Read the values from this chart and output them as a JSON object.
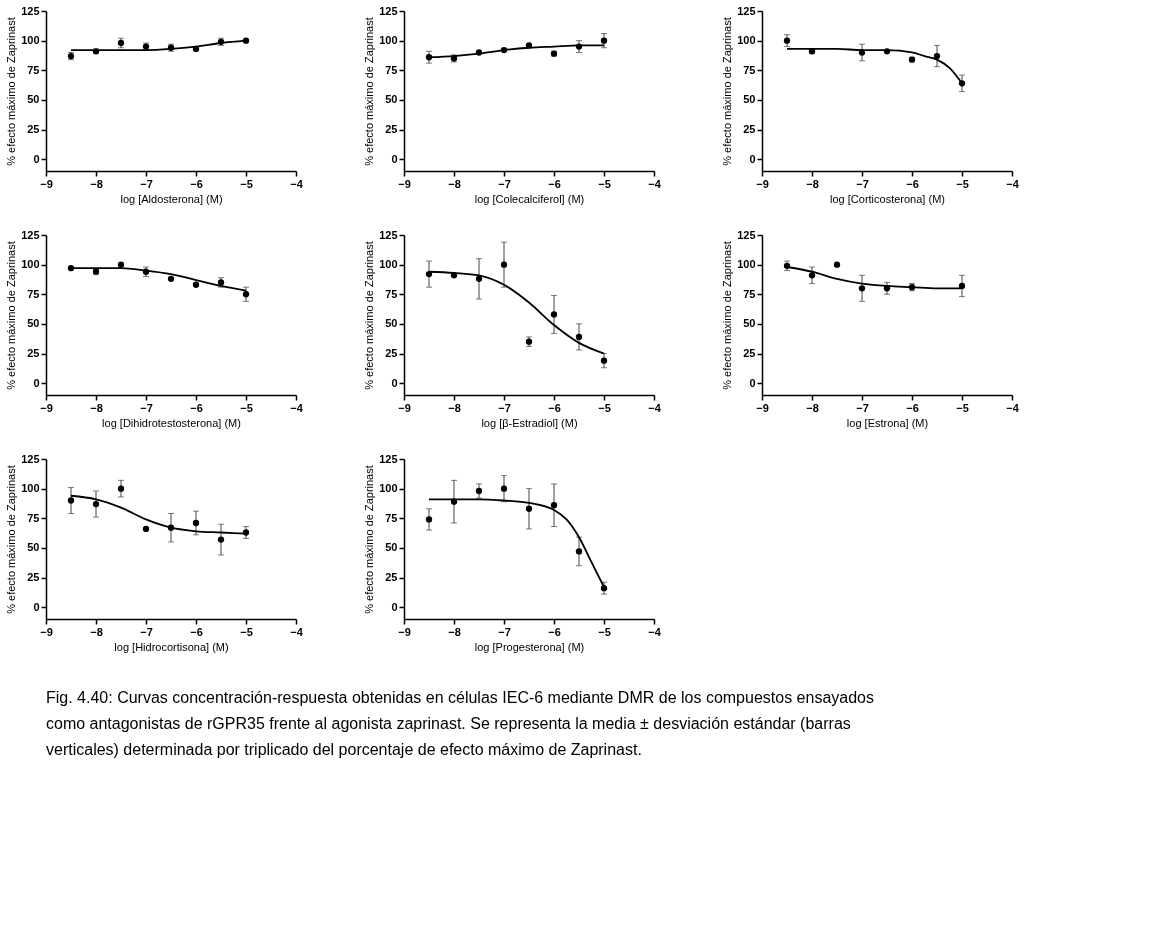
{
  "chart_data": [
    {
      "type": "scatter",
      "xlabel": "log [Aldosterona] (M)",
      "ylabel": "% efecto máximo de Zaprinast",
      "xlim": [
        -9,
        -4
      ],
      "xticks": [
        -9,
        -8,
        -7,
        -6,
        -5,
        -4
      ],
      "ylim": [
        -10,
        125
      ],
      "yticks": [
        0,
        25,
        50,
        75,
        100,
        125
      ],
      "grid": false,
      "series": [
        {
          "color": "#000000",
          "marker": "circle",
          "x": [
            -8.5,
            -8,
            -7.5,
            -7,
            -6.5,
            -6,
            -5.5,
            -5
          ],
          "values": [
            87,
            91,
            98,
            95,
            94,
            93,
            99,
            100
          ],
          "errors": [
            3,
            2,
            4,
            3,
            3,
            1,
            3,
            1
          ]
        },
        {
          "type": "line",
          "color": "#000000",
          "marker": "none",
          "x": [
            -8.5,
            -8,
            -7.5,
            -7,
            -6.5,
            -6,
            -5.5,
            -5
          ],
          "values": [
            92,
            92,
            92,
            92,
            93,
            95,
            98,
            100
          ]
        }
      ]
    },
    {
      "type": "scatter",
      "xlabel": "log [Colecalciferol] (M)",
      "ylabel": "% efecto máximo de Zaprinast",
      "xlim": [
        -9,
        -4
      ],
      "xticks": [
        -9,
        -8,
        -7,
        -6,
        -5,
        -4
      ],
      "ylim": [
        -10,
        125
      ],
      "yticks": [
        0,
        25,
        50,
        75,
        100,
        125
      ],
      "grid": false,
      "series": [
        {
          "color": "#000000",
          "marker": "circle",
          "x": [
            -8.5,
            -8,
            -7.5,
            -7,
            -6.5,
            -6,
            -5.5,
            -5
          ],
          "values": [
            86,
            85,
            90,
            92,
            96,
            89,
            95,
            100
          ],
          "errors": [
            5,
            3,
            1,
            1,
            1,
            2,
            5,
            6
          ]
        },
        {
          "type": "line",
          "color": "#000000",
          "marker": "none",
          "x": [
            -8.5,
            -8,
            -7.5,
            -7,
            -6.5,
            -6,
            -5.5,
            -5
          ],
          "values": [
            86,
            87,
            89,
            92,
            94,
            95,
            96,
            96
          ]
        }
      ]
    },
    {
      "type": "scatter",
      "xlabel": "log [Corticosterona] (M)",
      "ylabel": "% efecto máximo de Zaprinast",
      "xlim": [
        -9,
        -4
      ],
      "xticks": [
        -9,
        -8,
        -7,
        -6,
        -5,
        -4
      ],
      "ylim": [
        -10,
        125
      ],
      "yticks": [
        0,
        25,
        50,
        75,
        100,
        125
      ],
      "grid": false,
      "series": [
        {
          "color": "#000000",
          "marker": "circle",
          "x": [
            -8.5,
            -8,
            -7,
            -6.5,
            -6,
            -5.5,
            -5
          ],
          "values": [
            100,
            91,
            90,
            91,
            84,
            87,
            64
          ],
          "errors": [
            5,
            2,
            7,
            1,
            2,
            9,
            7
          ]
        },
        {
          "type": "line",
          "color": "#000000",
          "marker": "none",
          "x": [
            -8.5,
            -8,
            -7.5,
            -7,
            -6.5,
            -6,
            -5.75,
            -5.5,
            -5.25,
            -5
          ],
          "values": [
            93,
            93,
            93,
            92,
            92,
            90,
            87,
            84,
            77,
            64
          ]
        }
      ]
    },
    {
      "type": "scatter",
      "xlabel": "log [Dihidrotestosterona] (M)",
      "ylabel": "% efecto máximo de Zaprinast",
      "xlim": [
        -9,
        -4
      ],
      "xticks": [
        -9,
        -8,
        -7,
        -6,
        -5,
        -4
      ],
      "ylim": [
        -10,
        125
      ],
      "yticks": [
        0,
        25,
        50,
        75,
        100,
        125
      ],
      "grid": false,
      "series": [
        {
          "color": "#000000",
          "marker": "circle",
          "x": [
            -8.5,
            -8,
            -7.5,
            -7,
            -6.5,
            -6,
            -5.5,
            -5
          ],
          "values": [
            97,
            94,
            100,
            94,
            88,
            83,
            85,
            75
          ],
          "errors": [
            null,
            2,
            null,
            4,
            1,
            1,
            4,
            6
          ]
        },
        {
          "type": "line",
          "color": "#000000",
          "marker": "none",
          "x": [
            -8.5,
            -8,
            -7.5,
            -7,
            -6.5,
            -6,
            -5.5,
            -5
          ],
          "values": [
            97,
            97,
            97,
            95,
            92,
            87,
            82,
            78
          ]
        }
      ]
    },
    {
      "type": "scatter",
      "xlabel": "log [β-Estradiol] (M)",
      "ylabel": "% efecto máximo de Zaprinast",
      "xlim": [
        -9,
        -4
      ],
      "xticks": [
        -9,
        -8,
        -7,
        -6,
        -5,
        -4
      ],
      "ylim": [
        -10,
        125
      ],
      "yticks": [
        0,
        25,
        50,
        75,
        100,
        125
      ],
      "grid": false,
      "series": [
        {
          "color": "#000000",
          "marker": "circle",
          "x": [
            -8.5,
            -8,
            -7.5,
            -7,
            -6.5,
            -6,
            -5.5,
            -5
          ],
          "values": [
            92,
            91,
            88,
            100,
            35,
            58,
            39,
            19
          ],
          "errors": [
            11,
            1,
            17,
            19,
            4,
            16,
            11,
            6
          ]
        },
        {
          "type": "line",
          "color": "#000000",
          "marker": "none",
          "x": [
            -8.5,
            -8,
            -7.5,
            -7,
            -6.5,
            -6,
            -5.5,
            -5
          ],
          "values": [
            94,
            93,
            91,
            83,
            68,
            49,
            34,
            25
          ]
        }
      ]
    },
    {
      "type": "scatter",
      "xlabel": "log [Estrona] (M)",
      "ylabel": "% efecto máximo de Zaprinast",
      "xlim": [
        -9,
        -4
      ],
      "xticks": [
        -9,
        -8,
        -7,
        -6,
        -5,
        -4
      ],
      "ylim": [
        -10,
        125
      ],
      "yticks": [
        0,
        25,
        50,
        75,
        100,
        125
      ],
      "grid": false,
      "series": [
        {
          "color": "#000000",
          "marker": "circle",
          "x": [
            -8.5,
            -8,
            -7.5,
            -7,
            -6.5,
            -6,
            -5
          ],
          "values": [
            99,
            91,
            100,
            80,
            80,
            81,
            82
          ],
          "errors": [
            4,
            7,
            null,
            11,
            5,
            3,
            9
          ]
        },
        {
          "type": "line",
          "color": "#000000",
          "marker": "none",
          "x": [
            -8.5,
            -8,
            -7.5,
            -7,
            -6.5,
            -6,
            -5.5,
            -5
          ],
          "values": [
            98,
            94,
            88,
            84,
            82,
            81,
            80,
            80
          ]
        }
      ]
    },
    {
      "type": "scatter",
      "xlabel": "log [Hidrocortisona] (M)",
      "ylabel": "% efecto máximo de Zaprinast",
      "xlim": [
        -9,
        -4
      ],
      "xticks": [
        -9,
        -8,
        -7,
        -6,
        -5,
        -4
      ],
      "ylim": [
        -10,
        125
      ],
      "yticks": [
        0,
        25,
        50,
        75,
        100,
        125
      ],
      "grid": false,
      "series": [
        {
          "color": "#000000",
          "marker": "circle",
          "x": [
            -8.5,
            -8,
            -7.5,
            -7,
            -6.5,
            -6,
            -5.5,
            -5
          ],
          "values": [
            90,
            87,
            100,
            66,
            67,
            71,
            57,
            63
          ],
          "errors": [
            11,
            11,
            7,
            null,
            12,
            10,
            13,
            5
          ]
        },
        {
          "type": "line",
          "color": "#000000",
          "marker": "none",
          "x": [
            -8.5,
            -8,
            -7.5,
            -7,
            -6.5,
            -6,
            -5.5,
            -5
          ],
          "values": [
            94,
            91,
            84,
            74,
            67,
            64,
            63,
            62
          ]
        }
      ]
    },
    {
      "type": "scatter",
      "xlabel": "log [Progesterona] (M)",
      "ylabel": "% efecto máximo de Zaprinast",
      "xlim": [
        -9,
        -4
      ],
      "xticks": [
        -9,
        -8,
        -7,
        -6,
        -5,
        -4
      ],
      "ylim": [
        -10,
        125
      ],
      "yticks": [
        0,
        25,
        50,
        75,
        100,
        125
      ],
      "grid": false,
      "series": [
        {
          "color": "#000000",
          "marker": "circle",
          "x": [
            -8.5,
            -8,
            -7.5,
            -7,
            -6.5,
            -6,
            -5.5,
            -5
          ],
          "values": [
            74,
            89,
            98,
            100,
            83,
            86,
            47,
            16
          ],
          "errors": [
            9,
            18,
            6,
            11,
            17,
            18,
            12,
            5
          ]
        },
        {
          "type": "line",
          "color": "#000000",
          "marker": "none",
          "x": [
            -8.5,
            -8,
            -7.5,
            -7,
            -6.5,
            -6,
            -5.75,
            -5.5,
            -5.25,
            -5
          ],
          "values": [
            91,
            91,
            91,
            90,
            88,
            82,
            74,
            59,
            38,
            17
          ]
        }
      ],
      "annotations": [
        "Fig. 4.40: Curvas concentración-respuesta obtenidas en células IEC-6 mediante DMR de los compuestos ensayados como antagonistas de rGPR35 frente al agonista zaprinast. Se representa la media ± desviación estándar (barras verticales) determinada por triplicado del porcentaje de efecto máximo de Zaprinast."
      ]
    }
  ]
}
